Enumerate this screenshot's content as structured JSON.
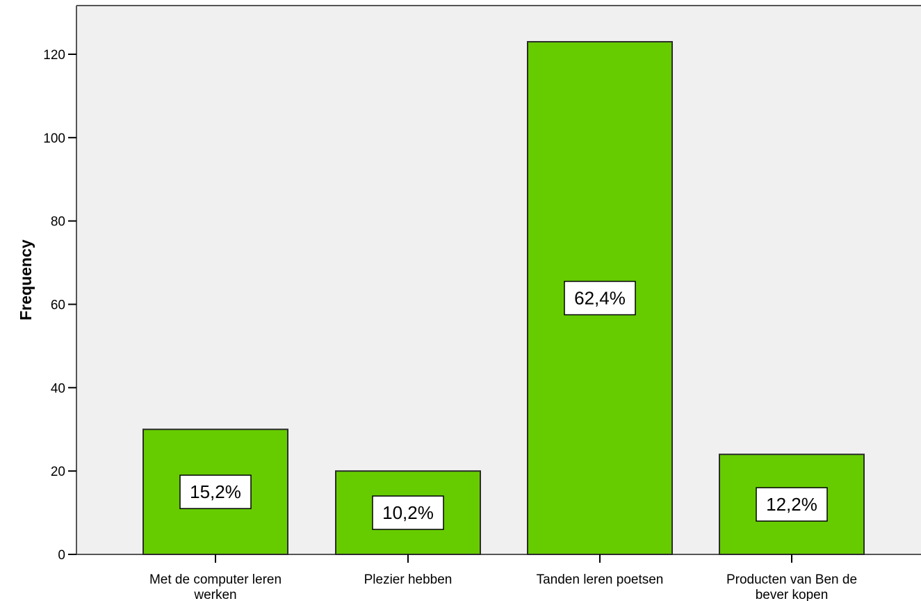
{
  "chart_data": {
    "type": "bar",
    "categories": [
      [
        "Met de computer leren",
        "werken"
      ],
      [
        "Plezier hebben"
      ],
      [
        "Tanden leren poetsen"
      ],
      [
        "Producten van Ben de",
        "bever kopen"
      ]
    ],
    "values": [
      30,
      20,
      123,
      24
    ],
    "data_labels": [
      "15,2%",
      "10,2%",
      "62,4%",
      "12,2%"
    ],
    "title": "",
    "xlabel": "",
    "ylabel": "Frequency",
    "ylim": [
      0,
      130
    ],
    "yticks": [
      0,
      20,
      40,
      60,
      80,
      100,
      120
    ],
    "grid": false,
    "colors": {
      "bar_fill": "#66cc00",
      "bar_stroke": "#2b2b2b",
      "plot_background": "#f0f0f0",
      "frame": "#555555",
      "label_box_fill": "#ffffff",
      "label_box_stroke": "#000000"
    }
  }
}
